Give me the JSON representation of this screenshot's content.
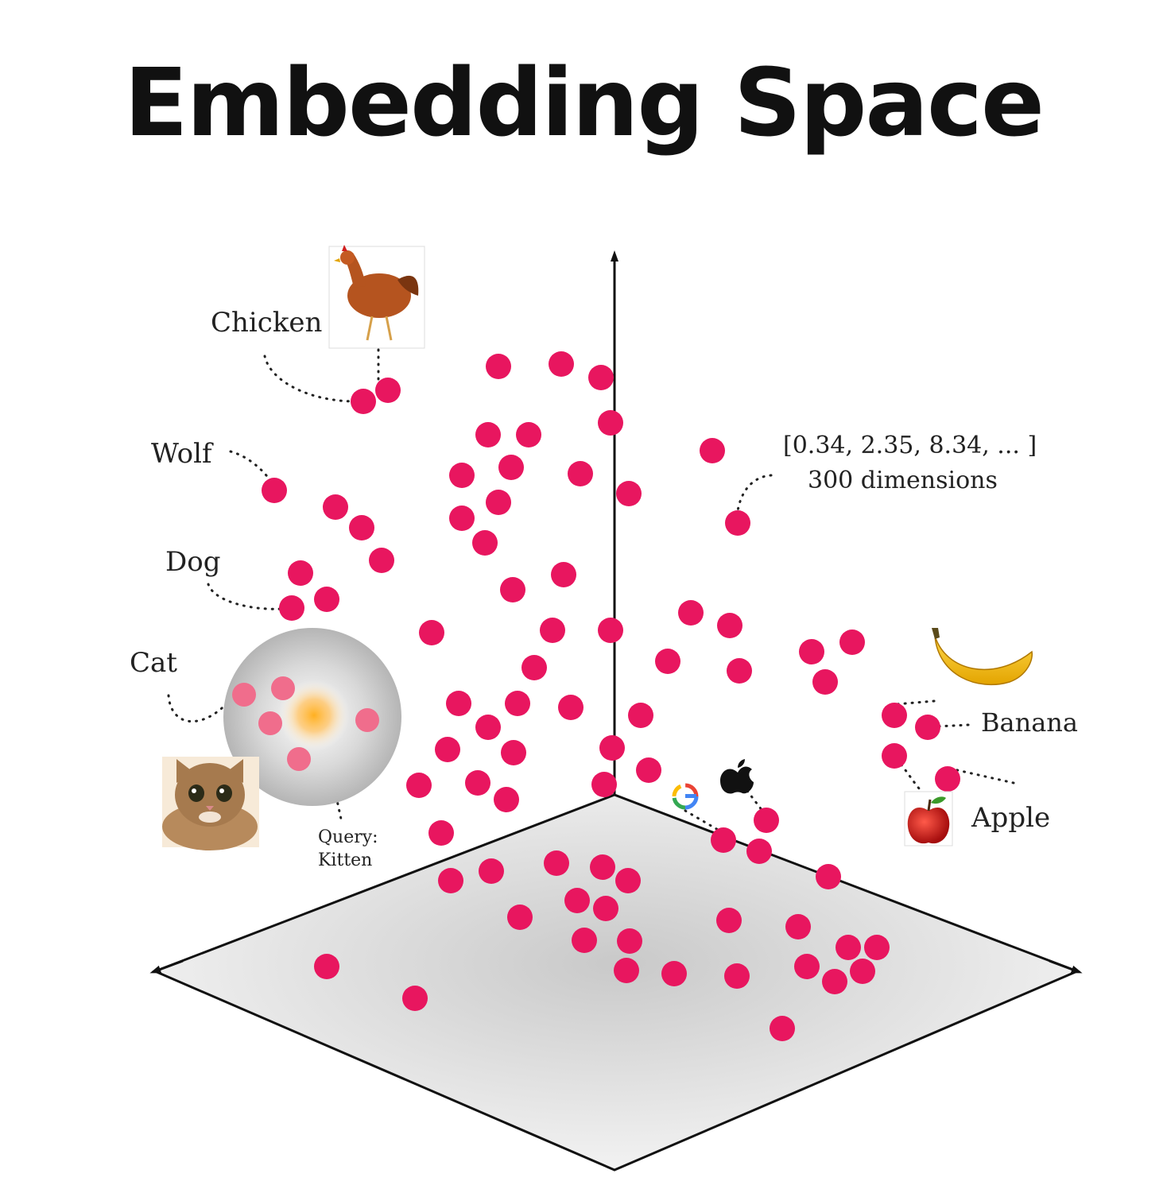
{
  "title": "Embedding Space",
  "colors": {
    "point": "#e8165f",
    "axis": "#111111",
    "plane_light": "#f3f3f3",
    "plane_dark": "#c8c8c8",
    "query_glow": "#f5a623",
    "halo": "#bdbdbd"
  },
  "labels": {
    "chicken": "Chicken",
    "wolf": "Wolf",
    "dog": "Dog",
    "cat": "Cat",
    "query_line1": "Query:",
    "query_line2": "Kitten",
    "vector": "[0.34, 2.35, 8.34, ... ]",
    "dimensions": "300 dimensions",
    "banana": "Banana",
    "apple": "Apple"
  },
  "images": {
    "chicken": "chicken-photo",
    "cat": "cat-photo",
    "banana": "banana-photo",
    "apple": "apple-photo",
    "google": "google-logo",
    "apple_logo": "apple-logo"
  }
}
